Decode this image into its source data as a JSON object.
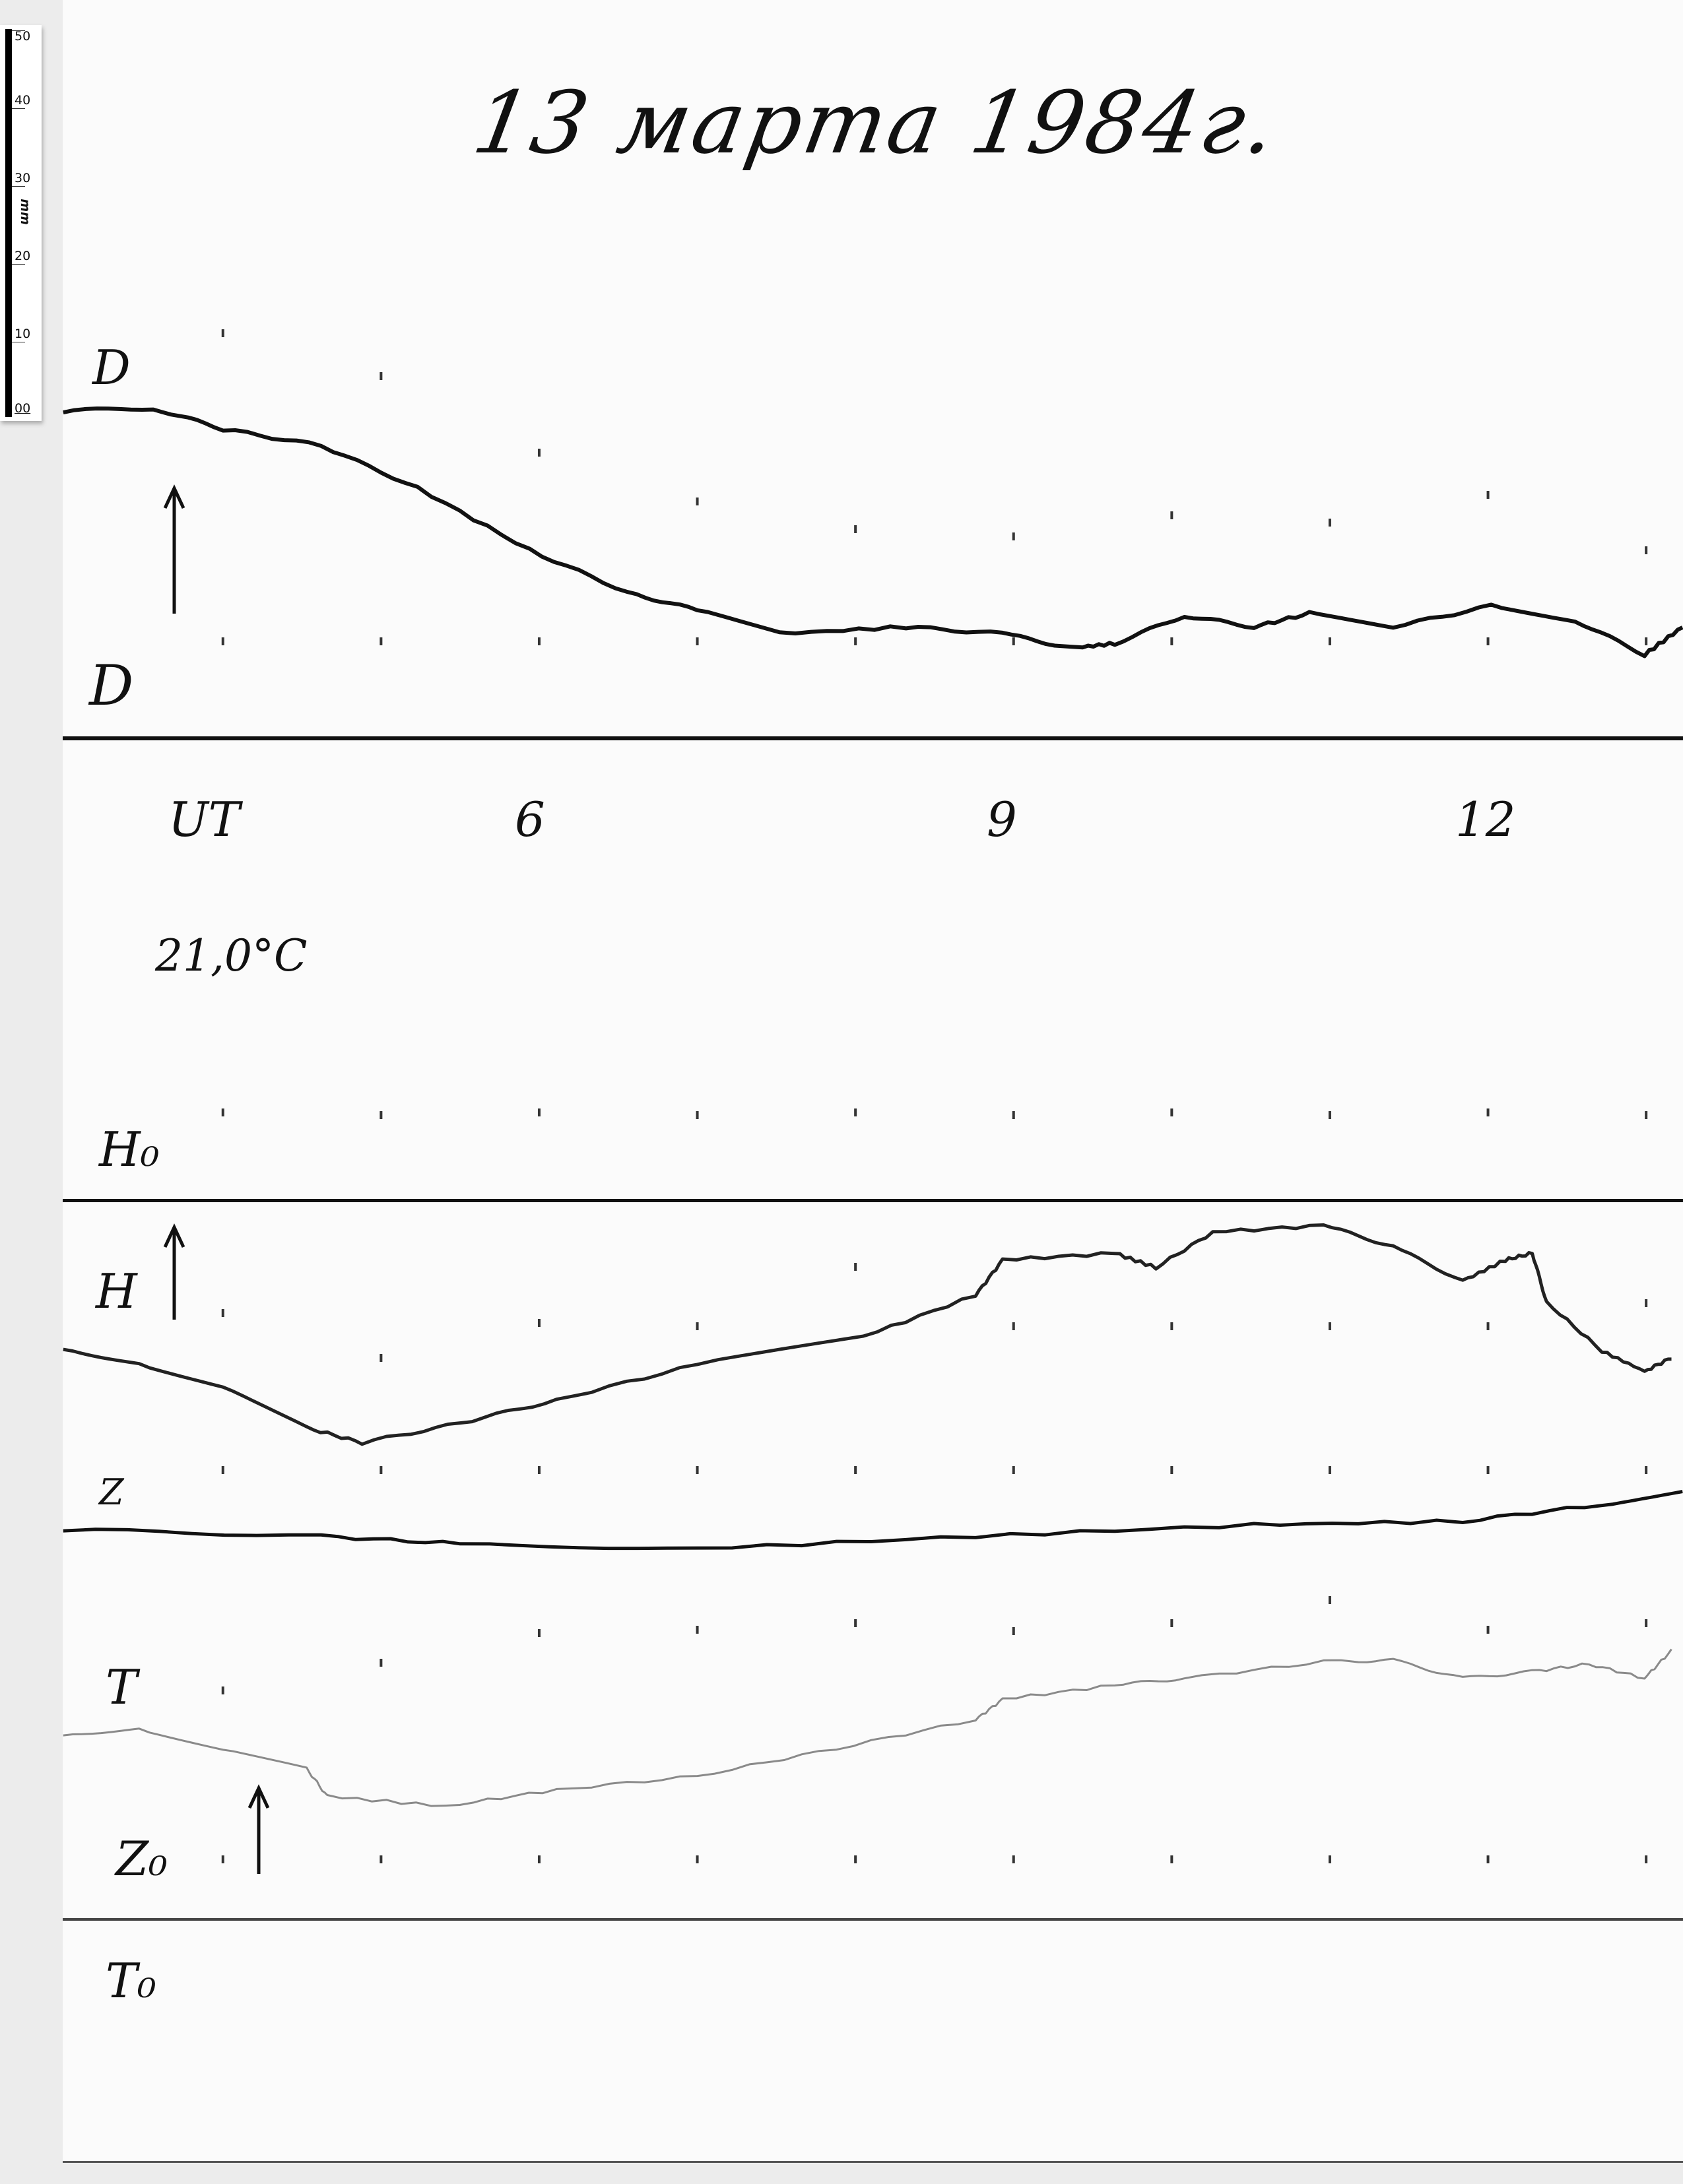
{
  "title": "13 марта 1984г.",
  "scale": {
    "unit": "mm",
    "ticks": [
      "50",
      "40",
      "30",
      "20",
      "10",
      "00"
    ]
  },
  "labels": {
    "d_top": "D",
    "d_bottom": "D",
    "ut": "UT",
    "hour_6": "6",
    "hour_9": "9",
    "hour_12": "12",
    "temperature": "21,0°C",
    "h0": "H₀",
    "h": "H",
    "z": "Z",
    "t": "T",
    "z0": "Z₀",
    "t0": "T₀"
  },
  "chart_data": {
    "type": "line",
    "xlabel": "UT",
    "x_ticks": [
      6,
      9,
      12
    ],
    "xlim": [
      3,
      13.25
    ],
    "ylabel": "mm",
    "series": [
      {
        "name": "D",
        "color": "#111111",
        "x": [
          2.99,
          3.56,
          4.0,
          4.62,
          5.23,
          5.94,
          6.56,
          7.0,
          7.52,
          8.32,
          8.93,
          9.37,
          9.64,
          10.08,
          10.52,
          10.87,
          11.4,
          12.02,
          12.55,
          12.99,
          13.23
        ],
        "y": [
          0,
          0.4,
          -2.4,
          -4.6,
          -10.2,
          -18.5,
          -24.1,
          -26.5,
          -29.6,
          -28.7,
          -29.6,
          -31.5,
          -30.9,
          -27.2,
          -28.7,
          -26.9,
          -28.7,
          -25.9,
          -27.8,
          -32.4,
          -28.7
        ]
      },
      {
        "name": "H",
        "color": "#222222",
        "x": [
          2.99,
          3.47,
          4.0,
          4.53,
          4.88,
          5.5,
          6.11,
          7.0,
          8.05,
          8.76,
          8.93,
          9.64,
          9.9,
          10.26,
          10.96,
          11.4,
          11.84,
          12.11,
          12.28,
          12.37,
          12.72,
          12.99,
          13.16
        ],
        "y": [
          0,
          -2.2,
          -5.0,
          -10.6,
          -12.6,
          -10.0,
          -6.9,
          -2.2,
          1.5,
          7.0,
          11.7,
          12.6,
          10.7,
          15.4,
          16.3,
          13.5,
          8.9,
          11.7,
          12.6,
          6.1,
          -0.4,
          -3.1,
          -1.3
        ]
      },
      {
        "name": "Z",
        "color": "#111111",
        "x": [
          2.99,
          4.62,
          5.5,
          7.0,
          8.76,
          10.52,
          11.84,
          12.72,
          13.23
        ],
        "y": [
          0,
          -0.9,
          -1.9,
          -2.6,
          -0.9,
          0.6,
          1.1,
          3.3,
          5.2
        ]
      },
      {
        "name": "T",
        "color": "#8a8a8a",
        "x": [
          2.99,
          3.47,
          4.0,
          4.53,
          4.66,
          5.41,
          6.11,
          7.0,
          7.88,
          8.76,
          8.93,
          9.64,
          10.08,
          10.96,
          11.4,
          11.84,
          12.28,
          12.64,
          12.99,
          13.16
        ],
        "y": [
          0,
          0.6,
          -1.9,
          -4.6,
          -8.3,
          -9.6,
          -7.4,
          -5.6,
          -1.9,
          1.9,
          4.6,
          6.5,
          7.4,
          9.6,
          9.8,
          7.4,
          8.3,
          9.3,
          7.4,
          11.1
        ]
      }
    ]
  }
}
